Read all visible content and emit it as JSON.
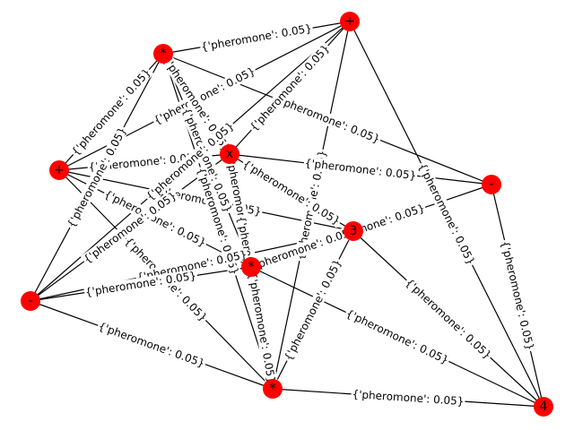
{
  "graph": {
    "edge_label_text": "{'pheromone': 0.05}",
    "node_color": "#ff0000",
    "edge_color": "#000000",
    "nodes": [
      {
        "id": "n0",
        "label": "+"
      },
      {
        "id": "n1",
        "label": "*"
      },
      {
        "id": "n2",
        "label": "+"
      },
      {
        "id": "n3",
        "label": "x"
      },
      {
        "id": "n4",
        "label": "-"
      },
      {
        "id": "n5",
        "label": "3"
      },
      {
        "id": "n6",
        "label": "*"
      },
      {
        "id": "n7",
        "label": "-"
      },
      {
        "id": "n8",
        "label": "*"
      },
      {
        "id": "n9",
        "label": "4"
      }
    ],
    "edges": [
      [
        "n0",
        "n1"
      ],
      [
        "n0",
        "n2"
      ],
      [
        "n0",
        "n3"
      ],
      [
        "n0",
        "n5"
      ],
      [
        "n0",
        "n6"
      ],
      [
        "n0",
        "n8"
      ],
      [
        "n1",
        "n2"
      ],
      [
        "n1",
        "n3"
      ],
      [
        "n1",
        "n4"
      ],
      [
        "n1",
        "n6"
      ],
      [
        "n1",
        "n7"
      ],
      [
        "n1",
        "n8"
      ],
      [
        "n2",
        "n3"
      ],
      [
        "n2",
        "n7"
      ],
      [
        "n2",
        "n8"
      ],
      [
        "n2",
        "n9"
      ],
      [
        "n3",
        "n4"
      ],
      [
        "n3",
        "n5"
      ],
      [
        "n3",
        "n6"
      ],
      [
        "n3",
        "n7"
      ],
      [
        "n3",
        "n8"
      ],
      [
        "n4",
        "n6"
      ],
      [
        "n4",
        "n9"
      ],
      [
        "n5",
        "n6"
      ],
      [
        "n5",
        "n7"
      ],
      [
        "n5",
        "n8"
      ],
      [
        "n5",
        "n9"
      ],
      [
        "n6",
        "n7"
      ],
      [
        "n6",
        "n8"
      ],
      [
        "n6",
        "n9"
      ],
      [
        "n7",
        "n8"
      ],
      [
        "n8",
        "n9"
      ]
    ]
  }
}
